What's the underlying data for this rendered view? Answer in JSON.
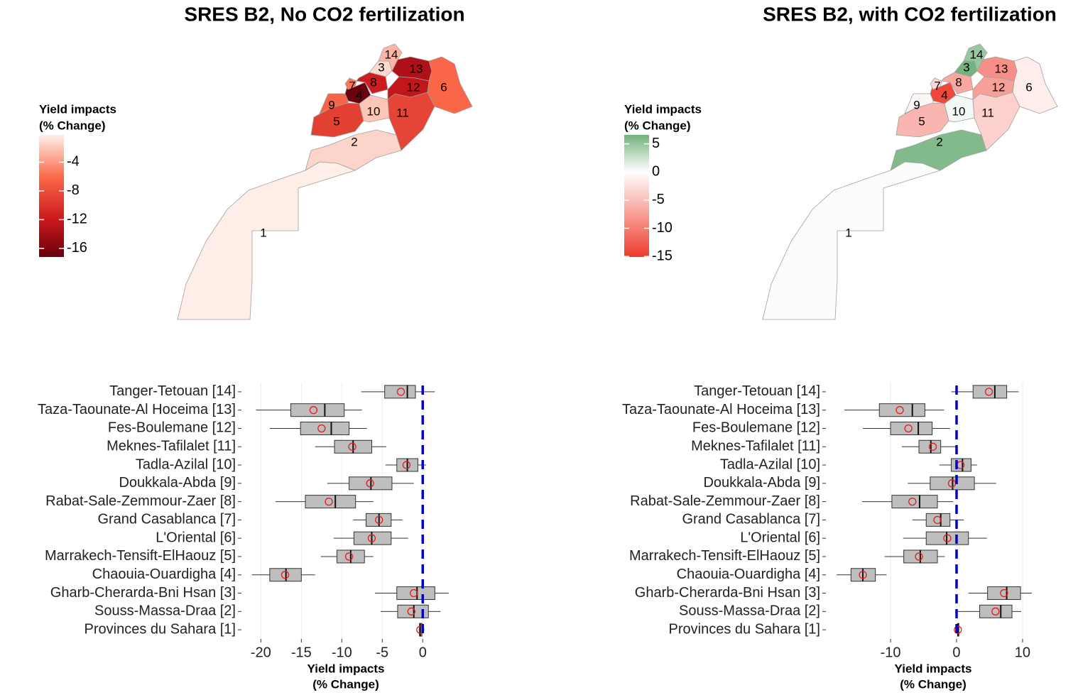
{
  "chart_data": [
    {
      "type": "map",
      "title": "SRES B2, No CO2 fertilization",
      "legend_title": [
        "Yield impacts",
        "(% Change)"
      ],
      "regions": [
        "1",
        "2",
        "3",
        "4",
        "5",
        "6",
        "7",
        "8",
        "9",
        "10",
        "11",
        "12",
        "13",
        "14"
      ],
      "values": [
        -0.3,
        -1.4,
        -1.1,
        -17.0,
        -9.1,
        -6.3,
        -5.4,
        -11.6,
        -6.5,
        -2.0,
        -8.7,
        -12.5,
        -13.5,
        -2.7
      ],
      "clim": [
        -17.2,
        -0.2
      ],
      "cticks": [
        -4,
        -8,
        -12,
        -16
      ],
      "color_stops": [
        [
          -17.2,
          "#67000d"
        ],
        [
          -12,
          "#cb181d"
        ],
        [
          -6,
          "#fb6a4a"
        ],
        [
          -0.2,
          "#fef0ea"
        ]
      ]
    },
    {
      "type": "boxplot",
      "categories": [
        "Tanger-Tetouan [14]",
        "Taza-Taounate-Al Hoceima [13]",
        "Fes-Boulemane [12]",
        "Meknes-Tafilalet [11]",
        "Tadla-Azilal [10]",
        "Doukkala-Abda [9]",
        "Rabat-Sale-Zemmour-Zaer [8]",
        "Grand Casablanca [7]",
        "L'Oriental [6]",
        "Marrakech-Tensift-ElHaouz [5]",
        "Chaouia-Ouardigha [4]",
        "Gharb-Cherarda-Bni Hsan [3]",
        "Souss-Massa-Draa [2]",
        "Provinces du Sahara [1]"
      ],
      "boxes": [
        {
          "low": -7.6,
          "q1": -4.7,
          "median": -1.9,
          "q3": -0.9,
          "high": 1.5,
          "mean": -2.7
        },
        {
          "low": -20.6,
          "q1": -16.3,
          "median": -12.1,
          "q3": -9.7,
          "high": -7.5,
          "mean": -13.5
        },
        {
          "low": -18.9,
          "q1": -15.1,
          "median": -11.3,
          "q3": -9.1,
          "high": -6.9,
          "mean": -12.5
        },
        {
          "low": -13.3,
          "q1": -10.9,
          "median": -8.6,
          "q3": -6.3,
          "high": -4.5,
          "mean": -8.7
        },
        {
          "low": -4.6,
          "q1": -3.2,
          "median": -1.9,
          "q3": -0.6,
          "high": 0.4,
          "mean": -2.0
        },
        {
          "low": -11.8,
          "q1": -9.1,
          "median": -6.4,
          "q3": -3.8,
          "high": -1.1,
          "mean": -6.5
        },
        {
          "low": -18.2,
          "q1": -14.5,
          "median": -10.8,
          "q3": -8.3,
          "high": -6.1,
          "mean": -11.6
        },
        {
          "low": -8.6,
          "q1": -7.0,
          "median": -5.4,
          "q3": -3.9,
          "high": -2.5,
          "mean": -5.4
        },
        {
          "low": -11.0,
          "q1": -8.5,
          "median": -6.3,
          "q3": -3.9,
          "high": -1.8,
          "mean": -6.3
        },
        {
          "low": -12.6,
          "q1": -10.6,
          "median": -8.9,
          "q3": -7.2,
          "high": -6.1,
          "mean": -9.1
        },
        {
          "low": -21.1,
          "q1": -18.9,
          "median": -16.9,
          "q3": -15.0,
          "high": -13.3,
          "mean": -17.0
        },
        {
          "low": -5.9,
          "q1": -3.2,
          "median": -0.7,
          "q3": 1.5,
          "high": 3.2,
          "mean": -1.1
        },
        {
          "low": -5.2,
          "q1": -3.1,
          "median": -1.1,
          "q3": 0.7,
          "high": 2.2,
          "mean": -1.4
        },
        {
          "low": -0.5,
          "q1": -0.4,
          "median": -0.3,
          "q3": -0.1,
          "high": 0.0,
          "mean": -0.3
        }
      ],
      "box_color": "#bebebe",
      "mean_color": "#e41a1c",
      "reference_line": {
        "value": 0,
        "color": "#0000cc"
      },
      "xlim": [
        -22.4,
        3.4
      ],
      "xticks": [
        -20,
        -15,
        -10,
        -5,
        0
      ],
      "x_label": [
        "Yield impacts",
        "(% Change)"
      ],
      "grid": true
    },
    {
      "type": "map",
      "title": "SRES B2, with CO2 fertilization",
      "legend_title": [
        "Yield impacts",
        "(% Change)"
      ],
      "regions": [
        "1",
        "2",
        "3",
        "4",
        "5",
        "6",
        "7",
        "8",
        "9",
        "10",
        "11",
        "12",
        "13",
        "14"
      ],
      "values": [
        0.2,
        5.9,
        7.2,
        -14.2,
        -5.7,
        -1.4,
        -2.9,
        -6.7,
        -0.7,
        0.6,
        -3.6,
        -7.3,
        -8.6,
        4.9
      ],
      "clim": [
        -15.1,
        6.6
      ],
      "cticks": [
        5,
        0,
        -5,
        -10,
        -15
      ],
      "color_stops": [
        [
          -15.1,
          "#ef3b2c"
        ],
        [
          0,
          "#ffffff"
        ],
        [
          6.6,
          "#74b27e"
        ]
      ]
    },
    {
      "type": "boxplot",
      "categories": [
        "Tanger-Tetouan [14]",
        "Taza-Taounate-Al Hoceima [13]",
        "Fes-Boulemane [12]",
        "Meknes-Tafilalet [11]",
        "Tadla-Azilal [10]",
        "Doukkala-Abda [9]",
        "Rabat-Sale-Zemmour-Zaer [8]",
        "Grand Casablanca [7]",
        "L'Oriental [6]",
        "Marrakech-Tensift-ElHaouz [5]",
        "Chaouia-Ouardigha [4]",
        "Gharb-Cherarda-Bni Hsan [3]",
        "Souss-Massa-Draa [2]",
        "Provinces du Sahara [1]"
      ],
      "boxes": [
        {
          "low": -0.8,
          "q1": 2.5,
          "median": 5.8,
          "q3": 7.6,
          "high": 9.4,
          "mean": 4.9
        },
        {
          "low": -17.0,
          "q1": -11.7,
          "median": -6.7,
          "q3": -4.8,
          "high": -1.9,
          "mean": -8.6
        },
        {
          "low": -14.2,
          "q1": -10.0,
          "median": -5.8,
          "q3": -3.7,
          "high": -1.0,
          "mean": -7.3
        },
        {
          "low": -8.3,
          "q1": -5.7,
          "median": -3.9,
          "q3": -2.4,
          "high": 0.1,
          "mean": -3.6
        },
        {
          "low": -2.6,
          "q1": -0.8,
          "median": 0.9,
          "q3": 2.2,
          "high": 3.1,
          "mean": 0.6
        },
        {
          "low": -7.4,
          "q1": -4.0,
          "median": -0.6,
          "q3": 2.7,
          "high": 6.0,
          "mean": -0.7
        },
        {
          "low": -14.3,
          "q1": -9.8,
          "median": -5.6,
          "q3": -2.9,
          "high": -0.5,
          "mean": -6.7
        },
        {
          "low": -6.7,
          "q1": -4.6,
          "median": -2.4,
          "q3": -1.0,
          "high": 1.1,
          "mean": -2.9
        },
        {
          "low": -8.1,
          "q1": -4.6,
          "median": -1.5,
          "q3": 1.8,
          "high": 4.6,
          "mean": -1.4
        },
        {
          "low": -10.9,
          "q1": -8.0,
          "median": -5.5,
          "q3": -2.9,
          "high": -1.8,
          "mean": -5.7
        },
        {
          "low": -18.2,
          "q1": -16.0,
          "median": -14.2,
          "q3": -12.3,
          "high": -10.6,
          "mean": -14.2
        },
        {
          "low": 1.8,
          "q1": 4.7,
          "median": 7.6,
          "q3": 9.7,
          "high": 11.4,
          "mean": 7.2
        },
        {
          "low": 0.2,
          "q1": 3.5,
          "median": 6.7,
          "q3": 8.4,
          "high": 9.8,
          "mean": 5.9
        },
        {
          "low": 0.1,
          "q1": 0.15,
          "median": 0.25,
          "q3": 0.35,
          "high": 0.4,
          "mean": 0.2
        }
      ],
      "box_color": "#bebebe",
      "mean_color": "#e41a1c",
      "reference_line": {
        "value": 0,
        "color": "#0000cc"
      },
      "xlim": [
        -19.8,
        12.7
      ],
      "xticks": [
        -10,
        0,
        10
      ],
      "x_label": [
        "Yield impacts",
        "(% Change)"
      ],
      "grid": true
    }
  ]
}
